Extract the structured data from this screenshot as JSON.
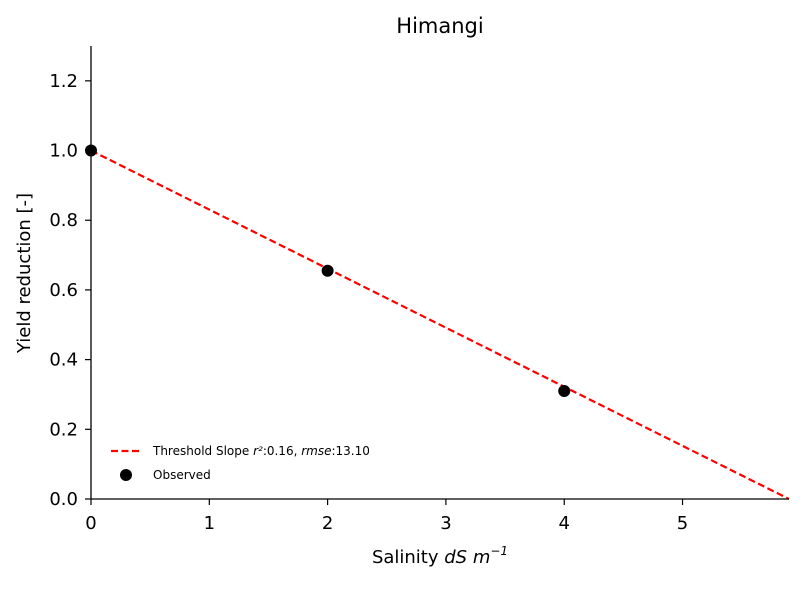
{
  "chart_data": {
    "type": "scatter",
    "title": "Himangi",
    "xlabel": {
      "prefix": "Salinity ",
      "units_italic": "dS m",
      "exponent": "−1"
    },
    "ylabel": "Yield reduction [-]",
    "xlim": [
      0,
      5.9
    ],
    "ylim": [
      0,
      1.3
    ],
    "xticks": [
      0,
      1,
      2,
      3,
      4,
      5
    ],
    "xtick_labels": [
      "0",
      "1",
      "2",
      "3",
      "4",
      "5"
    ],
    "yticks": [
      0.0,
      0.2,
      0.4,
      0.6,
      0.8,
      1.0,
      1.2
    ],
    "ytick_labels": [
      "0.0",
      "0.2",
      "0.4",
      "0.6",
      "0.8",
      "1.0",
      "1.2"
    ],
    "grid": false,
    "legend_position": "lower-left",
    "series": [
      {
        "name": "Threshold Slope",
        "kind": "line",
        "style": "dashed",
        "color": "#ff0000",
        "x": [
          0,
          5.9
        ],
        "y": [
          1.0,
          0.0
        ],
        "legend_label": {
          "name": "Threshold Slope ",
          "r2_label": "r²",
          "r2_value": ":0.16, ",
          "rmse_label": "rmse",
          "rmse_value": ":13.10"
        }
      },
      {
        "name": "Observed",
        "kind": "scatter",
        "color": "#000000",
        "x": [
          0,
          2,
          4
        ],
        "y": [
          1.0,
          0.655,
          0.31
        ],
        "legend_label": "Observed"
      }
    ]
  }
}
